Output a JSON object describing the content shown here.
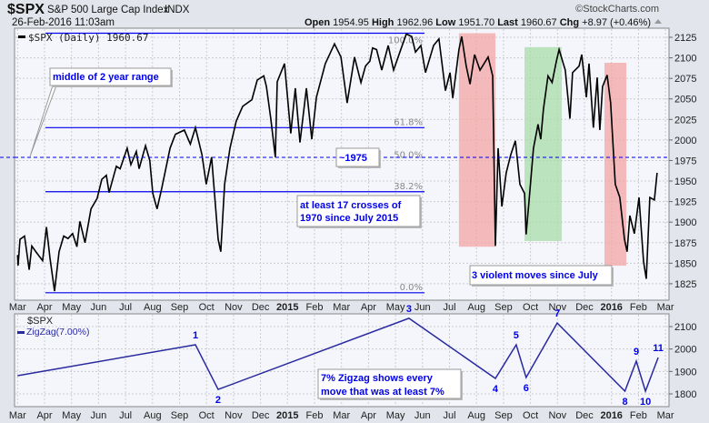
{
  "header": {
    "symbol": "$SPX",
    "name": "S&P 500 Large Cap Index",
    "exchange": "INDX",
    "date": "26-Feb-2016 11:03am",
    "copyright": "©StockCharts.com",
    "open_label": "Open",
    "open": "1954.95",
    "high_label": "High",
    "high": "1962.96",
    "low_label": "Low",
    "low": "1951.70",
    "last_label": "Last",
    "last": "1960.67",
    "chg_label": "Chg",
    "chg": "+8.97 (+0.46%)"
  },
  "colors": {
    "price": "#000000",
    "fib": "#0000ee",
    "zigzag": "#2a2aa0",
    "red_zone": "#f4a6a6",
    "green_zone": "#a8dca8",
    "note": "#0000ee"
  },
  "chart_data": [
    {
      "type": "line",
      "title": "$SPX (Daily) 1960.67",
      "x_unit": "months since Mar 2014",
      "ylim": [
        1810,
        2140
      ],
      "yticks": [
        1825,
        1850,
        1875,
        1900,
        1925,
        1950,
        1975,
        2000,
        2025,
        2050,
        2075,
        2100,
        2125
      ],
      "xticks": [
        "Mar",
        "Apr",
        "May",
        "Jun",
        "Jul",
        "Aug",
        "Sep",
        "Oct",
        "Nov",
        "Dec",
        "2015",
        "Feb",
        "Mar",
        "Apr",
        "May",
        "Jun",
        "Jul",
        "Aug",
        "Sep",
        "Oct",
        "Nov",
        "Dec",
        "2016",
        "Feb",
        "Mar"
      ],
      "grid": true,
      "series": [
        {
          "name": "$SPX",
          "points": [
            [
              0,
              1860
            ],
            [
              0.02,
              1847
            ],
            [
              0.09,
              1879
            ],
            [
              0.26,
              1883
            ],
            [
              0.43,
              1842
            ],
            [
              0.53,
              1871
            ],
            [
              0.7,
              1863
            ],
            [
              0.93,
              1853
            ],
            [
              1.07,
              1894
            ],
            [
              1.2,
              1857
            ],
            [
              1.37,
              1816
            ],
            [
              1.54,
              1864
            ],
            [
              1.71,
              1883
            ],
            [
              1.87,
              1880
            ],
            [
              2.04,
              1886
            ],
            [
              2.2,
              1870
            ],
            [
              2.31,
              1901
            ],
            [
              2.5,
              1875
            ],
            [
              2.72,
              1916
            ],
            [
              2.95,
              1929
            ],
            [
              3.12,
              1952
            ],
            [
              3.29,
              1957
            ],
            [
              3.39,
              1936
            ],
            [
              3.66,
              1968
            ],
            [
              3.8,
              1965
            ],
            [
              4.06,
              1990
            ],
            [
              4.2,
              1970
            ],
            [
              4.4,
              1986
            ],
            [
              4.5,
              1965
            ],
            [
              4.74,
              1993
            ],
            [
              4.9,
              1975
            ],
            [
              5.01,
              1935
            ],
            [
              5.17,
              1916
            ],
            [
              5.34,
              1941
            ],
            [
              5.65,
              1990
            ],
            [
              5.85,
              2007
            ],
            [
              6.18,
              2012
            ],
            [
              6.4,
              1995
            ],
            [
              6.59,
              2015
            ],
            [
              6.83,
              1982
            ],
            [
              6.99,
              1946
            ],
            [
              7.19,
              1979
            ],
            [
              7.43,
              1879
            ],
            [
              7.53,
              1864
            ],
            [
              7.67,
              1946
            ],
            [
              7.87,
              1990
            ],
            [
              8.1,
              2023
            ],
            [
              8.34,
              2041
            ],
            [
              8.68,
              2049
            ],
            [
              8.88,
              2073
            ],
            [
              9.12,
              2078
            ],
            [
              9.22,
              2065
            ],
            [
              9.38,
              2026
            ],
            [
              9.55,
              1979
            ],
            [
              9.62,
              2071
            ],
            [
              9.89,
              2093
            ],
            [
              10.12,
              2008
            ],
            [
              10.29,
              2063
            ],
            [
              10.46,
              1997
            ],
            [
              10.7,
              2063
            ],
            [
              10.9,
              2001
            ],
            [
              11.07,
              2052
            ],
            [
              11.4,
              2093
            ],
            [
              11.74,
              2117
            ],
            [
              11.98,
              2101
            ],
            [
              12.21,
              2045
            ],
            [
              12.48,
              2101
            ],
            [
              12.72,
              2070
            ],
            [
              12.89,
              2090
            ],
            [
              13.05,
              2096
            ],
            [
              13.15,
              2112
            ],
            [
              13.3,
              2110
            ],
            [
              13.49,
              2085
            ],
            [
              13.73,
              2115
            ],
            [
              13.93,
              2085
            ],
            [
              14.16,
              2107
            ],
            [
              14.4,
              2129
            ],
            [
              14.6,
              2126
            ],
            [
              14.74,
              2107
            ],
            [
              14.94,
              2115
            ],
            [
              15.11,
              2082
            ],
            [
              15.41,
              2115
            ],
            [
              15.61,
              2123
            ],
            [
              15.85,
              2060
            ],
            [
              16.02,
              2082
            ],
            [
              16.12,
              2051
            ],
            [
              16.35,
              2110
            ],
            [
              16.45,
              2126
            ],
            [
              16.62,
              2090
            ],
            [
              16.76,
              2068
            ],
            [
              16.93,
              2104
            ],
            [
              17.13,
              2085
            ],
            [
              17.43,
              2101
            ],
            [
              17.6,
              2078
            ],
            [
              17.7,
              1871
            ],
            [
              17.8,
              1990
            ],
            [
              17.94,
              1919
            ],
            [
              18.1,
              1960
            ],
            [
              18.27,
              1982
            ],
            [
              18.44,
              1999
            ],
            [
              18.61,
              1946
            ],
            [
              18.78,
              1935
            ],
            [
              18.84,
              1885
            ],
            [
              18.95,
              1927
            ],
            [
              19.11,
              1990
            ],
            [
              19.28,
              2019
            ],
            [
              19.38,
              2001
            ],
            [
              19.48,
              2038
            ],
            [
              19.65,
              2078
            ],
            [
              19.8,
              2070
            ],
            [
              19.96,
              2096
            ],
            [
              20.06,
              2110
            ],
            [
              20.29,
              2085
            ],
            [
              20.46,
              2026
            ],
            [
              20.56,
              2082
            ],
            [
              20.8,
              2090
            ],
            [
              20.9,
              2104
            ],
            [
              21.07,
              2052
            ],
            [
              21.17,
              2093
            ],
            [
              21.33,
              2015
            ],
            [
              21.47,
              2076
            ],
            [
              21.57,
              2012
            ],
            [
              21.67,
              2065
            ],
            [
              21.84,
              2079
            ],
            [
              21.97,
              2045
            ],
            [
              22.14,
              1946
            ],
            [
              22.31,
              1930
            ],
            [
              22.48,
              1879
            ],
            [
              22.58,
              1864
            ],
            [
              22.68,
              1908
            ],
            [
              22.85,
              1886
            ],
            [
              23.02,
              1930
            ],
            [
              23.19,
              1852
            ],
            [
              23.29,
              1831
            ],
            [
              23.42,
              1930
            ],
            [
              23.59,
              1927
            ],
            [
              23.69,
              1960
            ]
          ]
        }
      ],
      "fib_levels": [
        {
          "label": "100.0%",
          "value": 2130
        },
        {
          "label": "61.8%",
          "value": 2015
        },
        {
          "label": "50.0%",
          "value": 1975
        },
        {
          "label": "38.2%",
          "value": 1937
        },
        {
          "label": "0.0%",
          "value": 1814
        }
      ],
      "shaded_zones": [
        {
          "color": "red",
          "x": [
            16.35,
            17.7
          ],
          "y": [
            1870,
            2130
          ]
        },
        {
          "color": "green",
          "x": [
            18.78,
            20.16
          ],
          "y": [
            1877,
            2113
          ]
        },
        {
          "color": "red",
          "x": [
            21.74,
            22.55
          ],
          "y": [
            1847,
            2094
          ]
        }
      ],
      "annotations": {
        "middle": "middle of 2 year range",
        "level": "~1975",
        "crosses_1": "at least 17 crosses of",
        "crosses_2": "1970 since July 2015",
        "violent": "3 violent moves since July"
      }
    },
    {
      "type": "line",
      "title": "$SPX",
      "legend": "ZigZag(7.00%)",
      "ylim": [
        1760,
        2160
      ],
      "yticks": [
        1800,
        1900,
        2000,
        2100
      ],
      "series": [
        {
          "name": "ZigZag(7.00%)",
          "points": [
            [
              0,
              1881
            ],
            [
              6.59,
              2019
            ],
            [
              7.43,
              1820
            ],
            [
              14.5,
              2137
            ],
            [
              17.7,
              1869
            ],
            [
              18.47,
              2019
            ],
            [
              18.84,
              1873
            ],
            [
              19.99,
              2116
            ],
            [
              22.5,
              1812
            ],
            [
              22.92,
              1946
            ],
            [
              23.26,
              1812
            ],
            [
              23.73,
              1962
            ]
          ]
        }
      ],
      "point_labels": [
        "",
        "1",
        "2",
        "3",
        "4",
        "5",
        "6",
        "7",
        "8",
        "9",
        "10",
        "11"
      ],
      "annotation_1": "7% Zigzag shows every",
      "annotation_2": "move that was at least 7%"
    }
  ]
}
